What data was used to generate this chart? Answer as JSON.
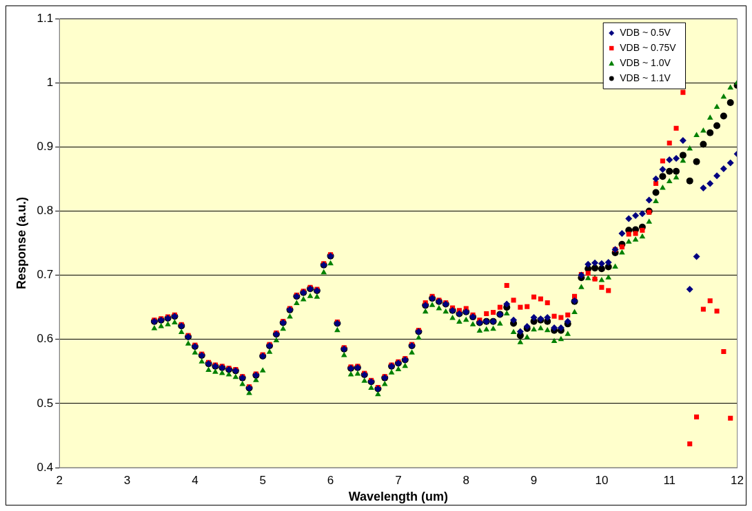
{
  "chart_data": {
    "type": "scatter",
    "xlabel": "Wavelength (um)",
    "ylabel": "Response (a.u.)",
    "x": [
      3.4,
      3.5,
      3.6,
      3.7,
      3.8,
      3.9,
      4.0,
      4.1,
      4.2,
      4.3,
      4.4,
      4.5,
      4.6,
      4.7,
      4.8,
      4.9,
      5.0,
      5.1,
      5.2,
      5.3,
      5.4,
      5.5,
      5.6,
      5.7,
      5.8,
      5.9,
      6.0,
      6.1,
      6.2,
      6.3,
      6.4,
      6.5,
      6.6,
      6.7,
      6.8,
      6.9,
      7.0,
      7.1,
      7.2,
      7.3,
      7.4,
      7.5,
      7.6,
      7.7,
      7.8,
      7.9,
      8.0,
      8.1,
      8.2,
      8.3,
      8.4,
      8.5,
      8.6,
      8.7,
      8.8,
      8.9,
      9.0,
      9.1,
      9.2,
      9.3,
      9.4,
      9.5,
      9.6,
      9.7,
      9.8,
      9.9,
      10.0,
      10.1,
      10.2,
      10.3,
      10.4,
      10.5,
      10.6,
      10.7,
      10.8,
      10.9,
      11.0,
      11.1,
      11.2,
      11.3,
      11.4,
      11.5,
      11.6,
      11.7,
      11.8,
      11.9,
      12.0
    ],
    "series": [
      {
        "name": "VDB ~ 0.5V",
        "color": "#000080",
        "marker": "diamond",
        "values": [
          0.628,
          0.63,
          0.633,
          0.636,
          0.621,
          0.604,
          0.589,
          0.575,
          0.562,
          0.558,
          0.556,
          0.553,
          0.551,
          0.54,
          0.524,
          0.544,
          0.574,
          0.59,
          0.608,
          0.626,
          0.646,
          0.667,
          0.673,
          0.679,
          0.676,
          0.716,
          0.73,
          0.625,
          0.585,
          0.555,
          0.556,
          0.545,
          0.534,
          0.523,
          0.54,
          0.558,
          0.563,
          0.568,
          0.59,
          0.612,
          0.653,
          0.664,
          0.659,
          0.655,
          0.645,
          0.64,
          0.643,
          0.635,
          0.626,
          0.628,
          0.628,
          0.639,
          0.655,
          0.63,
          0.612,
          0.62,
          0.634,
          0.632,
          0.634,
          0.618,
          0.618,
          0.628,
          0.66,
          0.7,
          0.717,
          0.719,
          0.718,
          0.72,
          0.74,
          0.765,
          0.788,
          0.793,
          0.796,
          0.817,
          0.85,
          0.865,
          0.88,
          0.882,
          0.91,
          0.678,
          0.729,
          0.836,
          0.843,
          0.855,
          0.866,
          0.875,
          0.889
        ]
      },
      {
        "name": "VDB ~ 0.75V",
        "color": "#ff0000",
        "marker": "square",
        "values": [
          0.63,
          0.632,
          0.635,
          0.638,
          0.623,
          0.606,
          0.591,
          0.577,
          0.564,
          0.56,
          0.558,
          0.555,
          0.553,
          0.542,
          0.526,
          0.546,
          0.576,
          0.592,
          0.61,
          0.628,
          0.648,
          0.669,
          0.675,
          0.681,
          0.678,
          0.718,
          0.732,
          0.627,
          0.587,
          0.557,
          0.558,
          0.547,
          0.536,
          0.525,
          0.542,
          0.56,
          0.565,
          0.57,
          0.592,
          0.614,
          0.657,
          0.667,
          0.661,
          0.657,
          0.649,
          0.645,
          0.648,
          0.638,
          0.63,
          0.64,
          0.642,
          0.65,
          0.684,
          0.661,
          0.65,
          0.651,
          0.666,
          0.663,
          0.657,
          0.636,
          0.634,
          0.638,
          0.667,
          0.701,
          0.703,
          0.694,
          0.681,
          0.676,
          0.74,
          0.744,
          0.764,
          0.765,
          0.77,
          0.798,
          0.843,
          0.878,
          0.906,
          0.929,
          0.985,
          0.437,
          0.479,
          0.647,
          0.66,
          0.644,
          0.581,
          0.477,
          null
        ]
      },
      {
        "name": "VDB ~ 1.0V",
        "color": "#008000",
        "marker": "triangle",
        "values": [
          0.617,
          0.62,
          0.623,
          0.626,
          0.611,
          0.593,
          0.579,
          0.565,
          0.552,
          0.549,
          0.547,
          0.545,
          0.541,
          0.53,
          0.516,
          0.536,
          0.551,
          0.58,
          0.598,
          0.616,
          0.635,
          0.656,
          0.662,
          0.667,
          0.666,
          0.704,
          0.718,
          0.614,
          0.575,
          0.545,
          0.546,
          0.535,
          0.524,
          0.514,
          0.53,
          0.548,
          0.553,
          0.558,
          0.579,
          0.602,
          0.643,
          0.653,
          0.648,
          0.643,
          0.633,
          0.627,
          0.63,
          0.623,
          0.613,
          0.615,
          0.616,
          0.624,
          0.64,
          0.611,
          0.595,
          0.603,
          0.615,
          0.617,
          0.614,
          0.597,
          0.6,
          0.608,
          0.642,
          0.681,
          0.695,
          0.695,
          0.692,
          0.696,
          0.713,
          0.735,
          0.752,
          0.755,
          0.76,
          0.783,
          0.815,
          0.836,
          0.846,
          0.852,
          0.878,
          0.897,
          0.918,
          0.925,
          0.945,
          0.962,
          0.978,
          0.992,
          1.0
        ]
      },
      {
        "name": "VDB ~ 1.1V",
        "color": "#000000",
        "marker": "circle",
        "values": [
          0.628,
          0.63,
          0.633,
          0.636,
          0.621,
          0.604,
          0.589,
          0.575,
          0.562,
          0.558,
          0.556,
          0.553,
          0.551,
          0.54,
          0.524,
          0.544,
          0.574,
          0.59,
          0.608,
          0.626,
          0.646,
          0.667,
          0.673,
          0.679,
          0.676,
          0.716,
          0.73,
          0.625,
          0.585,
          0.555,
          0.556,
          0.545,
          0.534,
          0.523,
          0.54,
          0.558,
          0.563,
          0.568,
          0.59,
          0.612,
          0.653,
          0.664,
          0.659,
          0.655,
          0.645,
          0.64,
          0.643,
          0.635,
          0.626,
          0.628,
          0.628,
          0.639,
          0.65,
          0.625,
          0.606,
          0.617,
          0.628,
          0.63,
          0.628,
          0.614,
          0.614,
          0.624,
          0.659,
          0.696,
          0.71,
          0.711,
          0.71,
          0.713,
          0.735,
          0.748,
          0.77,
          0.771,
          0.775,
          0.8,
          0.829,
          0.854,
          0.862,
          0.862,
          0.887,
          0.847,
          0.877,
          0.904,
          0.922,
          0.933,
          0.948,
          0.969,
          0.996
        ]
      }
    ],
    "xlim": [
      2,
      12
    ],
    "xticks": [
      2,
      3,
      4,
      5,
      6,
      7,
      8,
      9,
      10,
      11,
      12
    ],
    "ylim": [
      0.4,
      1.1
    ],
    "yticks": [
      0.4,
      0.5,
      0.6,
      0.7,
      0.8,
      0.9,
      1,
      1.1
    ],
    "grid": "y",
    "legend": "top right"
  }
}
